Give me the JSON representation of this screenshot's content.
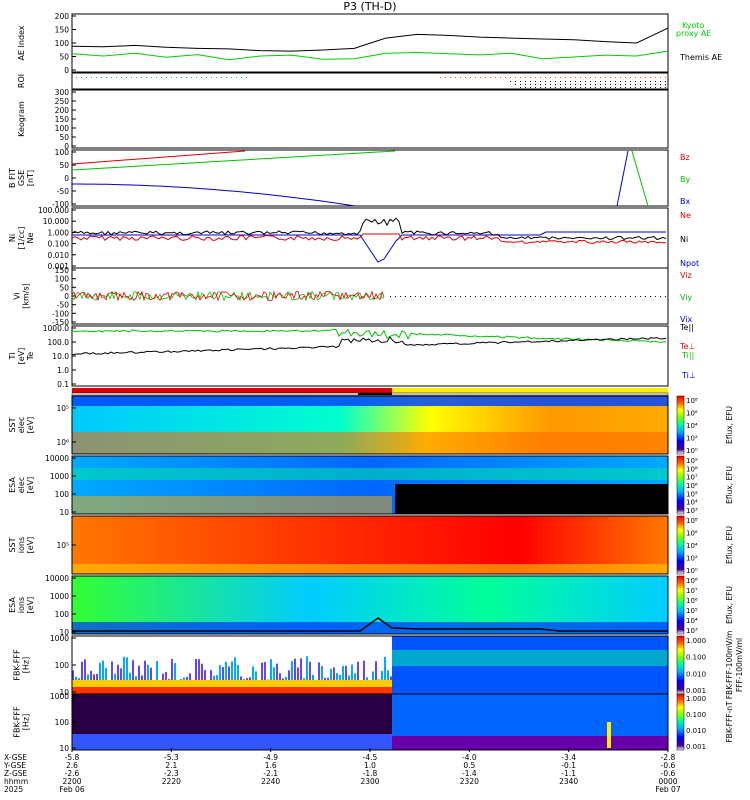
{
  "title": "P3 (TH-D)",
  "colors": {
    "black": "#000000",
    "red": "#e00000",
    "green": "#00c000",
    "blue": "#0000d0",
    "kyoto": "#00cc00",
    "roi": "#ff4400",
    "roi2": "#00aaaa",
    "perp": "#aa00aa"
  },
  "panels": {
    "ae": {
      "ylabel": "AE Index",
      "ticks": [
        "200",
        "150",
        "100",
        "50",
        "0"
      ],
      "legend": [
        {
          "text": "Kyoto",
          "color": "kyoto"
        },
        {
          "text": "proxy AE",
          "color": "kyoto"
        },
        {
          "text": "Themis AE",
          "color": "black"
        }
      ]
    },
    "roi": {
      "ylabel": "ROI"
    },
    "keogram": {
      "ylabel": "Keogram",
      "ticks": [
        "300",
        "250",
        "200",
        "150",
        "100",
        "50",
        "0"
      ]
    },
    "bfield": {
      "ylabel": "B FIT",
      "ylabel2": "GSE",
      "ylabel3": "[nT]",
      "ticks": [
        "100",
        "50",
        "0",
        "-50",
        "-100"
      ],
      "legend": [
        {
          "text": "Bz",
          "color": "red"
        },
        {
          "text": "By",
          "color": "green"
        },
        {
          "text": "Bx",
          "color": "blue"
        }
      ]
    },
    "density": {
      "ylabel": "Ni",
      "ylabel2": "[1/cc]",
      "ylabel3": "Ne",
      "ticks": [
        "100.000",
        "10.000",
        "1.000",
        "0.100",
        "0.010",
        "0.001"
      ],
      "legend": [
        {
          "text": "Ne",
          "color": "red"
        },
        {
          "text": "Ni",
          "color": "black"
        },
        {
          "text": "Npot",
          "color": "blue"
        }
      ]
    },
    "velocity": {
      "ylabel": "Vi",
      "ylabel2": "[km/s]",
      "ticks": [
        "150",
        "100",
        "50",
        "0",
        "-50",
        "-100",
        "-150"
      ],
      "legend": [
        {
          "text": "Viz",
          "color": "red"
        },
        {
          "text": "Viy",
          "color": "green"
        },
        {
          "text": "Vix",
          "color": "blue"
        }
      ]
    },
    "temp": {
      "ylabel": "Ti",
      "ylabel2": "[eV]",
      "ylabel3": "Te",
      "ticks": [
        "1000.0",
        "100.0",
        "10.0",
        "1.0",
        "0.1"
      ],
      "legend": [
        {
          "text": "Te||",
          "color": "black"
        },
        {
          "text": "Te⊥",
          "color": "red"
        },
        {
          "text": "Ti||",
          "color": "green"
        },
        {
          "text": "Ti⊥",
          "color": "blue"
        }
      ]
    },
    "sst_e": {
      "ylabel": "SST",
      "ylabel2": "elec",
      "ylabel3": "[eV]",
      "ticks": [
        "10⁵",
        "10⁶"
      ],
      "cbar": [
        "10⁸",
        "10⁶",
        "10⁴",
        "10²",
        "10⁰"
      ],
      "cbar_label": "Eflux, EFU"
    },
    "esa_e": {
      "ylabel": "ESA",
      "ylabel2": "elec",
      "ylabel3": "[eV]",
      "ticks": [
        "10000",
        "1000",
        "100",
        "10"
      ],
      "cbar": [
        "10⁹",
        "10⁸",
        "10⁷",
        "10⁶",
        "10⁵",
        "10⁴",
        "10³"
      ],
      "cbar_label": "Eflux, EFU"
    },
    "sst_i": {
      "ylabel": "SST",
      "ylabel2": "ions",
      "ylabel3": "[eV]",
      "ticks": [
        "10⁵"
      ],
      "cbar": [
        "10⁸",
        "10⁶",
        "10⁴",
        "10²",
        "10⁰"
      ],
      "cbar_label": "Eflux, EFU"
    },
    "esa_i": {
      "ylabel": "ESA",
      "ylabel2": "ions",
      "ylabel3": "[eV]",
      "ticks": [
        "10000",
        "1000",
        "100",
        "10"
      ],
      "cbar": [
        "10⁸",
        "10⁷",
        "10⁶",
        "10⁵",
        "10⁴",
        "10³"
      ],
      "cbar_label": "Eflux, EFU"
    },
    "fbk_b": {
      "ylabel": "FBK-FFF",
      "ylabel2": "[Hz]",
      "ticks": [
        "1000",
        "100",
        "10"
      ],
      "cbar": [
        "1.000",
        "0.100",
        "0.010",
        "0.001"
      ],
      "cbar_label": "FBK-FFF-100mV/m",
      "cbar_label2": "FFF-100mV/ml"
    },
    "fbk_c": {
      "ylabel": "FBK-FFF",
      "ylabel2": "[Hz]",
      "ticks": [
        "1000",
        "100",
        "10"
      ],
      "cbar": [
        "1.000",
        "0.100",
        "0.010",
        "0.001"
      ],
      "cbar_label": "FBK-FFF-nT"
    }
  },
  "footer": {
    "row_labels": [
      "X-GSE",
      "Y-GSE",
      "Z-GSE",
      "hhmm",
      "2025"
    ],
    "columns": [
      {
        "x": "-5.8",
        "y": "2.6",
        "z": "-2.6",
        "hhmm": "2200",
        "date": "Feb 06"
      },
      {
        "x": "-5.3",
        "y": "2.1",
        "z": "-2.3",
        "hhmm": "2220",
        "date": ""
      },
      {
        "x": "-4.9",
        "y": "1.6",
        "z": "-2.1",
        "hhmm": "2240",
        "date": ""
      },
      {
        "x": "-4.5",
        "y": "1.0",
        "z": "-1.8",
        "hhmm": "2300",
        "date": ""
      },
      {
        "x": "-4.0",
        "y": "0.5",
        "z": "-1.4",
        "hhmm": "2320",
        "date": ""
      },
      {
        "x": "-3.4",
        "y": "-0.1",
        "z": "-1.1",
        "hhmm": "2340",
        "date": ""
      },
      {
        "x": "-2.8",
        "y": "-0.6",
        "z": "-0.6",
        "hhmm": "0000",
        "date": "Feb 07"
      }
    ]
  },
  "chart_data": {
    "type": "line",
    "title": "P3 (TH-D)",
    "x_ticks": [
      "2200",
      "2220",
      "2240",
      "2300",
      "2320",
      "2340",
      "0000"
    ],
    "series": [
      {
        "name": "Themis AE",
        "values": [
          88,
          86,
          91,
          84,
          80,
          78,
          72,
          70,
          74,
          80,
          118,
          132,
          128,
          122,
          118,
          115,
          112,
          105,
          100,
          155
        ]
      },
      {
        "name": "Kyoto proxy AE",
        "values": [
          60,
          52,
          62,
          47,
          57,
          38,
          52,
          55,
          40,
          42,
          62,
          65,
          60,
          56,
          62,
          42,
          48,
          55,
          52,
          70
        ]
      }
    ],
    "ae_ylim": [
      0,
      200
    ]
  }
}
